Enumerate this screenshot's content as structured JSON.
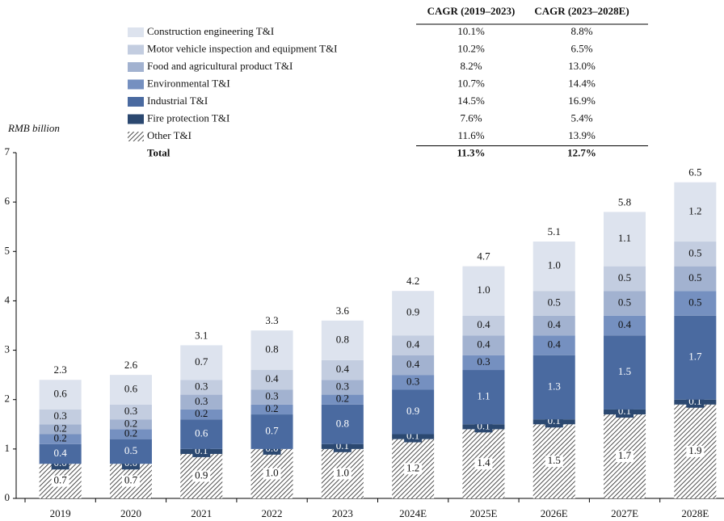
{
  "chart_data": {
    "type": "stacked_bar",
    "ylabel": "RMB billion",
    "categories": [
      "2019",
      "2020",
      "2021",
      "2022",
      "2023",
      "2024E",
      "2025E",
      "2026E",
      "2027E",
      "2028E"
    ],
    "series": [
      {
        "name": "Construction engineering T&I",
        "color": "#dde3ee",
        "values": [
          0.6,
          0.6,
          0.7,
          0.8,
          0.8,
          0.9,
          1.0,
          1.0,
          1.1,
          1.2
        ],
        "value_labels": [
          "0.6",
          "0.6",
          "0.7",
          "0.8",
          "0.8",
          "0.9",
          "1.0",
          "1.0",
          "1.1",
          "1.2"
        ]
      },
      {
        "name": "Motor vehicle inspection and equipment T&I",
        "color": "#c3cde0",
        "values": [
          0.3,
          0.3,
          0.3,
          0.4,
          0.4,
          0.4,
          0.4,
          0.5,
          0.5,
          0.5
        ],
        "value_labels": [
          "0.3",
          "0.3",
          "0.3",
          "0.4",
          "0.4",
          "0.4",
          "0.4",
          "0.5",
          "0.5",
          "0.5"
        ]
      },
      {
        "name": "Food and agricultural product T&I",
        "color": "#a2b2d0",
        "values": [
          0.2,
          0.2,
          0.3,
          0.3,
          0.3,
          0.4,
          0.4,
          0.4,
          0.5,
          0.5
        ],
        "value_labels": [
          "0.2",
          "0.2",
          "0.3",
          "0.3",
          "0.3",
          "0.4",
          "0.4",
          "0.4",
          "0.5",
          "0.5"
        ]
      },
      {
        "name": "Environmental T&I",
        "color": "#7590c0",
        "values": [
          0.2,
          0.2,
          0.2,
          0.2,
          0.2,
          0.3,
          0.3,
          0.4,
          0.4,
          0.5
        ],
        "value_labels": [
          "0.2",
          "0.2",
          "0.2",
          "0.2",
          "0.2",
          "0.3",
          "0.3",
          "0.4",
          "0.4",
          "0.5"
        ]
      },
      {
        "name": "Industrial T&I",
        "color": "#4a6aa0",
        "values": [
          0.4,
          0.5,
          0.6,
          0.7,
          0.8,
          0.9,
          1.1,
          1.3,
          1.5,
          1.7
        ],
        "value_labels": [
          "0.4",
          "0.5",
          "0.6",
          "0.7",
          "0.8",
          "0.9",
          "1.1",
          "1.3",
          "1.5",
          "1.7"
        ]
      },
      {
        "name": "Fire protection T&I",
        "color": "#2b4870",
        "values": [
          0.0,
          0.0,
          0.1,
          0.0,
          0.1,
          0.1,
          0.1,
          0.1,
          0.1,
          0.1
        ],
        "value_labels": [
          "0.0",
          "0.0",
          "0.1",
          "0.0",
          "0.1",
          "0.1",
          "0.1",
          "0.1",
          "0.1",
          "0.1"
        ]
      },
      {
        "name": "Other T&I",
        "color": "#333333",
        "pattern": "hatch",
        "values": [
          0.7,
          0.7,
          0.9,
          1.0,
          1.0,
          1.2,
          1.4,
          1.5,
          1.7,
          1.9
        ],
        "value_labels": [
          "0.7",
          "0.7",
          "0.9",
          "1.0",
          "1.0",
          "1.2",
          "1.4",
          "1.5",
          "1.7",
          "1.9"
        ]
      }
    ],
    "totals": [
      2.3,
      2.6,
      3.1,
      3.3,
      3.6,
      4.2,
      4.7,
      5.1,
      5.8,
      6.5
    ],
    "ylim": [
      0,
      7
    ],
    "yticks": [
      0,
      1,
      2,
      3,
      4,
      5,
      6,
      7
    ],
    "grid": false,
    "cagr": {
      "headers": [
        "CAGR (2019–2023)",
        "CAGR (2023–2028E)"
      ],
      "rows": [
        [
          "10.1%",
          "8.8%"
        ],
        [
          "10.2%",
          "6.5%"
        ],
        [
          "8.2%",
          "13.0%"
        ],
        [
          "10.7%",
          "14.4%"
        ],
        [
          "14.5%",
          "16.9%"
        ],
        [
          "7.6%",
          "5.4%"
        ],
        [
          "11.6%",
          "13.9%"
        ]
      ],
      "total_label": "Total",
      "total": [
        "11.3%",
        "12.7%"
      ]
    }
  }
}
